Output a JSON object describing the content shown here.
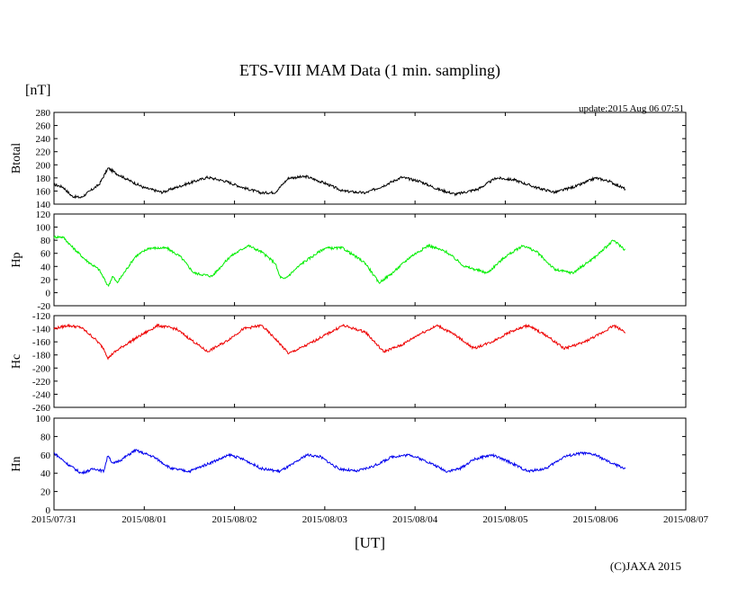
{
  "chart_data": {
    "type": "line",
    "title": "ETS-VIII MAM Data (1 min. sampling)",
    "unit_label": "[nT]",
    "update_text": "update:2015 Aug 06 07:51",
    "xlabel": "[UT]",
    "copyright": "(C)JAXA 2015",
    "x_ticks": [
      "2015/07/31",
      "2015/08/01",
      "2015/08/02",
      "2015/08/03",
      "2015/08/04",
      "2015/08/05",
      "2015/08/06",
      "2015/08/07"
    ],
    "x_range_days": [
      0,
      7
    ],
    "data_end_day": 6.33,
    "panels": [
      {
        "name": "Btotal",
        "color": "#000000",
        "ylim": [
          140,
          280
        ],
        "yticks": [
          140,
          160,
          180,
          200,
          220,
          240,
          260,
          280
        ],
        "series": {
          "x": [
            0,
            0.1,
            0.2,
            0.3,
            0.4,
            0.5,
            0.6,
            0.7,
            0.85,
            1.0,
            1.2,
            1.45,
            1.7,
            1.9,
            2.1,
            2.3,
            2.45,
            2.6,
            2.8,
            3.0,
            3.2,
            3.45,
            3.65,
            3.85,
            4.05,
            4.25,
            4.45,
            4.7,
            4.9,
            5.1,
            5.35,
            5.55,
            5.8,
            6.0,
            6.15,
            6.33
          ],
          "y": [
            170,
            166,
            152,
            150,
            160,
            170,
            195,
            186,
            175,
            165,
            158,
            170,
            181,
            175,
            165,
            157,
            158,
            180,
            182,
            172,
            160,
            157,
            168,
            181,
            175,
            163,
            155,
            163,
            180,
            177,
            165,
            158,
            168,
            180,
            175,
            163
          ]
        }
      },
      {
        "name": "Hp",
        "color": "#00ee00",
        "ylim": [
          -20,
          120
        ],
        "yticks": [
          -20,
          0,
          20,
          40,
          60,
          80,
          100,
          120
        ],
        "series": {
          "x": [
            0,
            0.1,
            0.2,
            0.35,
            0.5,
            0.6,
            0.65,
            0.7,
            0.8,
            0.9,
            1.05,
            1.25,
            1.4,
            1.55,
            1.75,
            1.95,
            2.15,
            2.3,
            2.45,
            2.5,
            2.55,
            2.75,
            3.0,
            3.2,
            3.45,
            3.6,
            3.75,
            3.95,
            4.15,
            4.35,
            4.55,
            4.8,
            5.0,
            5.2,
            5.35,
            5.55,
            5.75,
            6.0,
            6.2,
            6.33
          ],
          "y": [
            85,
            85,
            70,
            50,
            35,
            10,
            25,
            15,
            35,
            55,
            68,
            68,
            55,
            30,
            25,
            55,
            72,
            62,
            45,
            25,
            20,
            45,
            68,
            68,
            45,
            15,
            30,
            55,
            72,
            62,
            40,
            30,
            55,
            72,
            62,
            35,
            30,
            55,
            80,
            65
          ]
        }
      },
      {
        "name": "Hc",
        "color": "#ee0000",
        "ylim": [
          -260,
          -120
        ],
        "yticks": [
          -260,
          -240,
          -220,
          -200,
          -180,
          -160,
          -140,
          -120
        ],
        "series": {
          "x": [
            0,
            0.15,
            0.3,
            0.45,
            0.55,
            0.6,
            0.65,
            0.75,
            0.9,
            1.15,
            1.35,
            1.55,
            1.7,
            1.9,
            2.1,
            2.3,
            2.45,
            2.6,
            2.8,
            3.0,
            3.2,
            3.45,
            3.65,
            3.85,
            4.05,
            4.25,
            4.45,
            4.65,
            4.85,
            5.05,
            5.25,
            5.45,
            5.65,
            5.85,
            6.05,
            6.2,
            6.33
          ],
          "y": [
            -140,
            -135,
            -138,
            -155,
            -170,
            -185,
            -178,
            -168,
            -155,
            -135,
            -140,
            -160,
            -175,
            -160,
            -140,
            -135,
            -155,
            -178,
            -165,
            -150,
            -135,
            -145,
            -175,
            -165,
            -148,
            -135,
            -150,
            -170,
            -160,
            -145,
            -135,
            -150,
            -170,
            -162,
            -148,
            -135,
            -145
          ]
        }
      },
      {
        "name": "Hn",
        "color": "#0000ee",
        "ylim": [
          0,
          100
        ],
        "yticks": [
          0,
          20,
          40,
          60,
          80,
          100
        ],
        "series": {
          "x": [
            0,
            0.15,
            0.3,
            0.45,
            0.55,
            0.6,
            0.65,
            0.75,
            0.9,
            1.1,
            1.3,
            1.5,
            1.7,
            1.95,
            2.1,
            2.3,
            2.5,
            2.65,
            2.8,
            2.95,
            3.15,
            3.35,
            3.55,
            3.75,
            3.95,
            4.15,
            4.35,
            4.5,
            4.65,
            4.85,
            5.05,
            5.25,
            5.45,
            5.65,
            5.85,
            6.0,
            6.15,
            6.33
          ],
          "y": [
            62,
            50,
            40,
            45,
            42,
            60,
            50,
            55,
            65,
            58,
            45,
            42,
            50,
            60,
            55,
            45,
            42,
            50,
            60,
            58,
            45,
            42,
            48,
            58,
            60,
            52,
            42,
            45,
            55,
            60,
            52,
            42,
            45,
            58,
            62,
            60,
            52,
            45
          ]
        }
      }
    ]
  }
}
